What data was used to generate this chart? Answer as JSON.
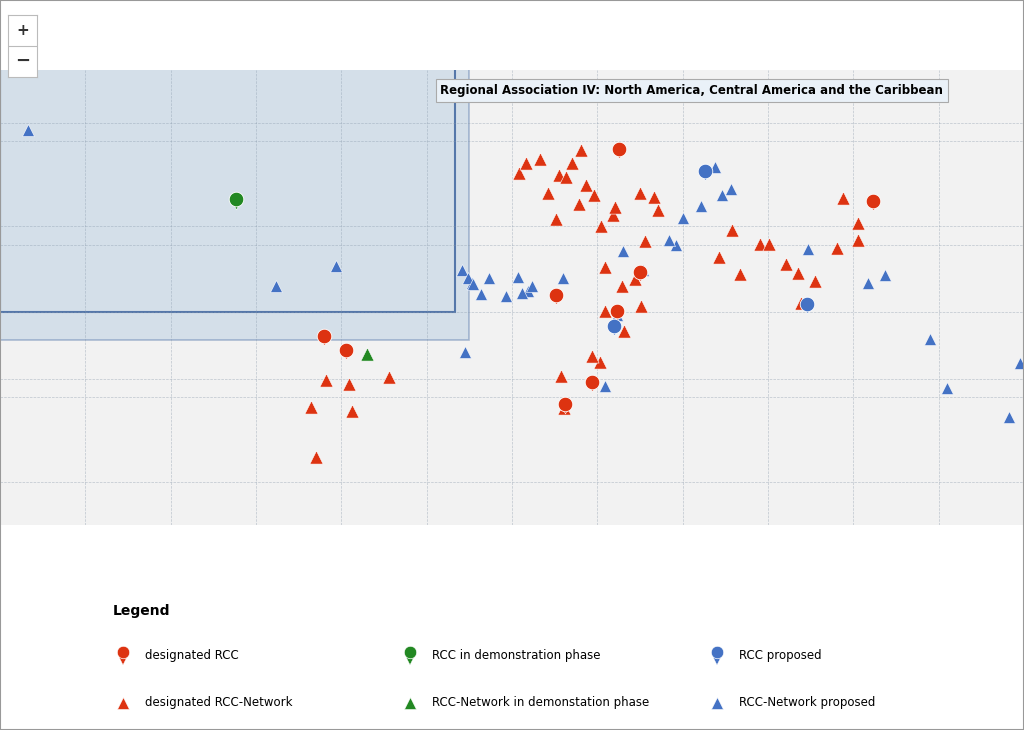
{
  "title": "Regional Association IV: North America, Central America and the Caribbean",
  "background_ocean": "#c9dff0",
  "background_land": "#d4d4d4",
  "ra4_color": "#b0c8e0",
  "highlighted_land_color": "#c0ccd8",
  "grid_color": "#8899aa",
  "legend_title": "Legend",
  "map_title_bg": "#eaf1f8",
  "markers": {
    "designated_rcc": {
      "color": "#dd3311",
      "label": "designated RCC",
      "points": [
        [
          37.6,
          55.75
        ],
        [
          127.0,
          37.5
        ],
        [
          -66.0,
          -10.0
        ],
        [
          -58.4,
          -14.9
        ],
        [
          28.0,
          -26.2
        ],
        [
          15.3,
          4.3
        ],
        [
          45.0,
          12.5
        ],
        [
          18.5,
          -34.0
        ],
        [
          36.8,
          -1.3
        ]
      ]
    },
    "rcc_demo": {
      "color": "#228822",
      "label": "RCC in demonstration phase",
      "points": [
        [
          -97.0,
          38.0
        ]
      ]
    },
    "rcc_proposed": {
      "color": "#4472c4",
      "label": "RCC proposed",
      "points": [
        [
          68.0,
          48.0
        ],
        [
          36.0,
          -6.5
        ],
        [
          103.8,
          1.35
        ]
      ]
    },
    "designated_rcc_network": {
      "color": "#dd3311",
      "label": "designated RCC-Network",
      "points": [
        [
          2.35,
          48.85
        ],
        [
          12.5,
          41.9
        ],
        [
          23.7,
          37.97
        ],
        [
          4.9,
          52.37
        ],
        [
          10.0,
          53.55
        ],
        [
          16.37,
          48.2
        ],
        [
          19.04,
          47.5
        ],
        [
          26.1,
          44.43
        ],
        [
          21.0,
          52.23
        ],
        [
          24.1,
          56.95
        ],
        [
          28.95,
          41.01
        ],
        [
          35.5,
          33.9
        ],
        [
          31.23,
          30.06
        ],
        [
          36.22,
          36.72
        ],
        [
          44.83,
          41.69
        ],
        [
          49.9,
          40.37
        ],
        [
          51.42,
          35.67
        ],
        [
          46.72,
          24.68
        ],
        [
          15.6,
          32.53
        ],
        [
          38.79,
          9.02
        ],
        [
          43.15,
          11.59
        ],
        [
          45.34,
          2.04
        ],
        [
          -43.17,
          -22.9
        ],
        [
          -70.67,
          -33.45
        ],
        [
          -56.19,
          -34.9
        ],
        [
          -65.5,
          -24.0
        ],
        [
          -57.3,
          -25.3
        ],
        [
          -69.0,
          -51.0
        ],
        [
          106.69,
          10.82
        ],
        [
          100.5,
          13.75
        ],
        [
          101.7,
          3.14
        ],
        [
          114.18,
          22.3
        ],
        [
          121.56,
          25.04
        ],
        [
          116.39,
          39.9
        ],
        [
          121.47,
          31.23
        ],
        [
          87.32,
          23.73
        ],
        [
          77.21,
          28.63
        ],
        [
          72.88,
          19.07
        ],
        [
          80.27,
          13.08
        ],
        [
          90.38,
          23.72
        ],
        [
          96.16,
          16.85
        ],
        [
          32.57,
          15.55
        ],
        [
          17.09,
          -22.56
        ],
        [
          39.28,
          -6.8
        ],
        [
          18.42,
          -33.92
        ],
        [
          31.05,
          -17.83
        ],
        [
          28.28,
          -15.41
        ],
        [
          32.54,
          0.31
        ]
      ]
    },
    "rcc_network_demo": {
      "color": "#228822",
      "label": "RCC-Network in demonstation phase",
      "points": [
        [
          -51.0,
          -15.0
        ]
      ]
    },
    "rcc_network_proposed": {
      "color": "#4472c4",
      "label": "RCC-Network proposed",
      "points": [
        [
          -170.0,
          64.0
        ],
        [
          -83.0,
          9.0
        ],
        [
          -62.0,
          16.0
        ],
        [
          5.55,
          7.34
        ],
        [
          -14.0,
          10.0
        ],
        [
          178.68,
          -18.15
        ],
        [
          147.0,
          -9.45
        ],
        [
          153.0,
          -27.0
        ],
        [
          174.76,
          -36.85
        ],
        [
          131.0,
          13.0
        ],
        [
          125.0,
          10.0
        ],
        [
          104.0,
          22.0
        ],
        [
          74.0,
          41.0
        ],
        [
          71.5,
          51.0
        ],
        [
          76.9,
          43.25
        ],
        [
          66.5,
          37.0
        ],
        [
          60.0,
          33.0
        ],
        [
          57.5,
          23.6
        ],
        [
          55.3,
          25.26
        ],
        [
          46.0,
          14.5
        ],
        [
          39.0,
          21.5
        ],
        [
          36.82,
          -1.28
        ],
        [
          -2.0,
          5.35
        ],
        [
          18.0,
          12.0
        ],
        [
          7.0,
          9.0
        ],
        [
          3.4,
          6.45
        ],
        [
          -17.44,
          14.69
        ],
        [
          -15.6,
          11.85
        ],
        [
          -13.7,
          9.7
        ],
        [
          -10.8,
          6.3
        ],
        [
          -8.0,
          12.0
        ],
        [
          2.0,
          12.3
        ],
        [
          -16.58,
          -14.0
        ],
        [
          32.53,
          -25.97
        ]
      ]
    }
  },
  "lon_min": -180,
  "lon_max": 180,
  "lat_min": -75,
  "lat_max": 85
}
